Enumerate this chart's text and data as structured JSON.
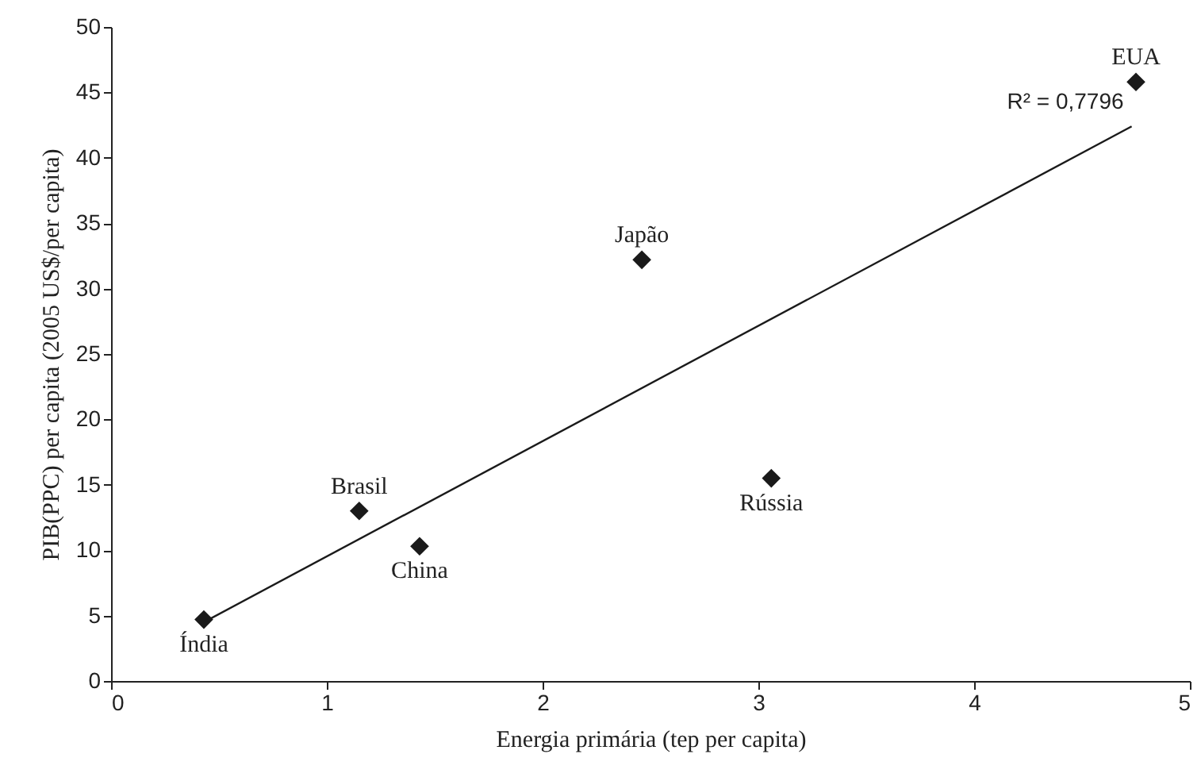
{
  "chart_data": {
    "type": "scatter",
    "xlabel": "Energia primária (tep per capita)",
    "ylabel": "PIB(PPC) per capita (2005 US$/per capita)",
    "xlim": [
      0,
      5
    ],
    "xticks": [
      0,
      1,
      2,
      3,
      4,
      5
    ],
    "ylim": [
      0,
      50
    ],
    "yticks": [
      0,
      5,
      10,
      15,
      20,
      25,
      30,
      35,
      40,
      45,
      50
    ],
    "grid": false,
    "series": [
      {
        "color": "#1a1a1a",
        "marker": "diamond",
        "x": [
          0.43,
          1.15,
          1.43,
          2.46,
          3.06,
          4.75
        ],
        "values": [
          4.7,
          13.0,
          10.3,
          32.2,
          15.5,
          45.8
        ]
      },
      {
        "type": "line",
        "color": "#1a1a1a",
        "marker": "none",
        "line_style": "solid",
        "x": [
          0.43,
          4.73
        ],
        "values": [
          4.5,
          42.4
        ]
      }
    ],
    "annotations": [
      {
        "text": "Índia",
        "x": 0.43,
        "y": 4.7
      },
      {
        "text": "Brasil",
        "x": 1.15,
        "y": 13.0
      },
      {
        "text": "China",
        "x": 1.43,
        "y": 10.3
      },
      {
        "text": "Japão",
        "x": 2.46,
        "y": 32.2
      },
      {
        "text": "Rússia",
        "x": 3.06,
        "y": 15.5
      },
      {
        "text": "EUA",
        "x": 4.75,
        "y": 45.8
      },
      "R² = 0,7796"
    ]
  }
}
